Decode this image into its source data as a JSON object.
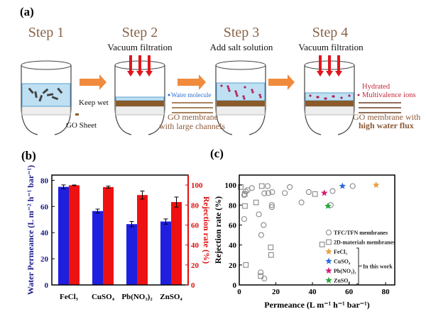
{
  "panel_a": {
    "label": "(a)",
    "steps": [
      {
        "title": "Step 1",
        "subtitle": ""
      },
      {
        "title": "Step 2",
        "subtitle": "Vacuum filtration"
      },
      {
        "title": "Step 3",
        "subtitle": "Add salt solution"
      },
      {
        "title": "Step 4",
        "subtitle": "Vacuum filtration"
      }
    ],
    "go_sheet": "GO Sheet",
    "keep_wet": "Keep wet",
    "water_molecule": "Water molecule",
    "go_membrane_large_1": "GO membrane",
    "go_membrane_large_2": "with large channels",
    "hydrated_1": "Hydrated",
    "hydrated_2": "Multivalence ions",
    "go_membrane_flux_1": "GO membrane with",
    "go_membrane_flux_2": "high water flux",
    "colors": {
      "arrow": "#f08a3c",
      "vacuum": "#e0161e",
      "water": "#bfe0f2",
      "go": "#8b5a2b",
      "ion": "#b0205a"
    }
  },
  "chart_data": [
    {
      "panel": "(b)",
      "type": "bar",
      "categories": [
        "FeCl3",
        "CuSO4",
        "Pb(NO3)2",
        "ZnSO4"
      ],
      "category_labels": [
        "FeCl₃",
        "CuSO₄",
        "Pb(NO₃)₂",
        "ZnSO₄"
      ],
      "series": [
        {
          "name": "Water Permeance",
          "axis": "left",
          "color": "#1f1fe0",
          "values": [
            75,
            56.5,
            46.5,
            48.5
          ],
          "errors": [
            1.5,
            1.5,
            2,
            2
          ]
        },
        {
          "name": "Rejection rate",
          "axis": "right",
          "color": "#ee1111",
          "values": [
            99.8,
            98,
            90,
            83
          ],
          "errors": [
            0.3,
            1,
            4,
            5
          ]
        }
      ],
      "ylabel": "Water Permeance (L m⁻² h⁻¹ bar⁻¹)",
      "ylabel_color": "#1a1a8c",
      "ylim": [
        0,
        84
      ],
      "yticks": [
        0,
        20,
        40,
        60,
        80
      ],
      "y2label": "Rejection rate (%)",
      "y2label_color": "#e01010",
      "y2lim": [
        0,
        110
      ],
      "y2ticks": [
        0,
        20,
        40,
        60,
        80,
        100
      ]
    },
    {
      "panel": "(c)",
      "type": "scatter",
      "xlabel": "Permeance (L m⁻¹ h⁻¹ bar⁻¹)",
      "ylabel": "Rejection rate (%)",
      "xlim": [
        0,
        85
      ],
      "ylim": [
        0,
        110
      ],
      "xticks": [
        0,
        20,
        40,
        60,
        80
      ],
      "yticks": [
        0,
        20,
        40,
        60,
        80,
        100
      ],
      "series": [
        {
          "name": "TFC/TFN membranes",
          "marker": "circle",
          "color": "#888888",
          "points": [
            [
              2.7,
              90
            ],
            [
              3.6,
              93.6
            ],
            [
              4.6,
              95
            ],
            [
              6.9,
              97
            ],
            [
              2.7,
              66
            ],
            [
              10.7,
              70.7
            ],
            [
              12,
              50
            ],
            [
              13.3,
              60
            ],
            [
              13.7,
              91.7
            ],
            [
              15.5,
              99
            ],
            [
              15.9,
              92
            ],
            [
              18,
              93
            ],
            [
              17.8,
              80
            ],
            [
              17.8,
              78
            ],
            [
              24.9,
              92
            ],
            [
              27.6,
              98
            ],
            [
              34,
              82.6
            ],
            [
              38,
              93
            ],
            [
              51,
              94
            ],
            [
              50,
              80
            ],
            [
              62,
              99
            ],
            [
              11.7,
              12.6
            ],
            [
              13.7,
              6.4
            ]
          ]
        },
        {
          "name": "2D-materials membranes",
          "marker": "square",
          "color": "#888888",
          "points": [
            [
              0.8,
              98
            ],
            [
              3,
              91
            ],
            [
              3.1,
              79
            ],
            [
              3.6,
              20
            ],
            [
              9.2,
              82.6
            ],
            [
              12.3,
              99
            ],
            [
              17.2,
              37.6
            ],
            [
              17.4,
              30
            ],
            [
              11.7,
              9
            ],
            [
              41.4,
              91
            ],
            [
              45.3,
              40.5
            ]
          ]
        },
        {
          "name": "FeCl₃",
          "marker": "star",
          "color": "#e8a040",
          "points": [
            [
              74.8,
              100
            ]
          ]
        },
        {
          "name": "CuSO₄",
          "marker": "star",
          "color": "#2a6fe0",
          "points": [
            [
              56.4,
              99
            ]
          ]
        },
        {
          "name": "Pb(NO₃)₂",
          "marker": "star",
          "color": "#d0207a",
          "points": [
            [
              46.5,
              92
            ]
          ]
        },
        {
          "name": "ZnSO₄",
          "marker": "star",
          "color": "#22a83a",
          "points": [
            [
              48.5,
              79
            ]
          ]
        }
      ],
      "bracket_label": "In this work",
      "legend_position": "lower-right"
    }
  ]
}
